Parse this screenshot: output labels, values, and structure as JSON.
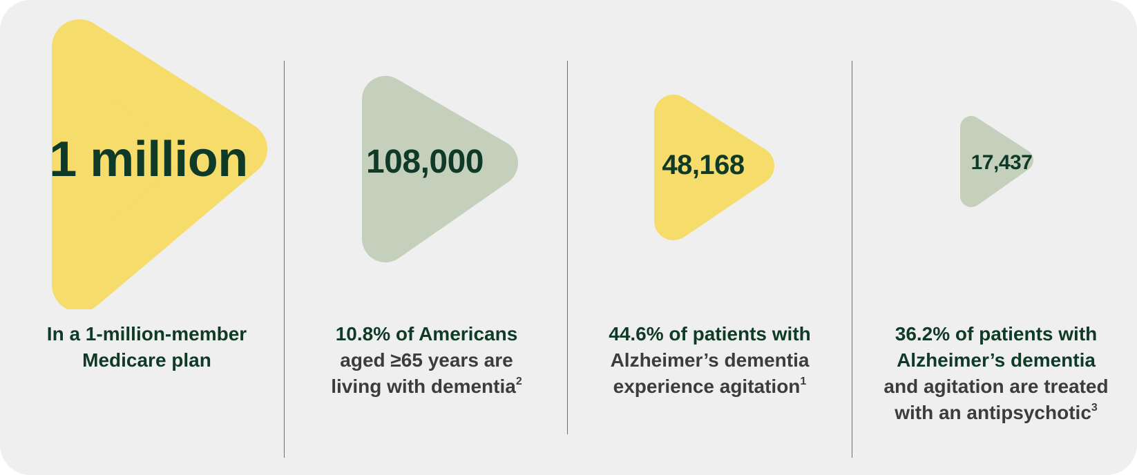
{
  "colors": {
    "background": "#efefef",
    "yellow": "#f5dc6b",
    "sage": "#c4d0bb",
    "dark_green": "#0e3a27",
    "gray_text": "#3c3c3c",
    "divider": "#6f6f6f"
  },
  "stats": [
    {
      "number": "1 million",
      "shape_color": "yellow",
      "caption_line1_highlight": "In a 1-million-member",
      "caption_line1_rest": "",
      "caption_line2_highlight": "Medicare plan",
      "caption_line2_rest": "",
      "caption_line3": "",
      "caption_line4": "",
      "footnote": ""
    },
    {
      "number": "108,000",
      "shape_color": "sage",
      "caption_line1_highlight": "10.8% of Americans",
      "caption_line1_rest": "",
      "caption_line2_highlight": "",
      "caption_line2_rest": "aged ≥65 years are",
      "caption_line3": "living with dementia",
      "caption_line4": "",
      "footnote": "2"
    },
    {
      "number": "48,168",
      "shape_color": "yellow",
      "caption_line1_highlight": "44.6%  of patients",
      "caption_line1_rest": " with",
      "caption_line2_highlight": "",
      "caption_line2_rest": "Alzheimer’s dementia",
      "caption_line3": "experience agitation",
      "caption_line4": "",
      "footnote": "1"
    },
    {
      "number": "17,437",
      "shape_color": "sage",
      "caption_line1_highlight": "36.2% of patients with",
      "caption_line1_rest": "",
      "caption_line2_highlight": "Alzheimer’s dementia",
      "caption_line2_rest": "",
      "caption_line3": "and agitation are treated",
      "caption_line4": "with an antipsychotic",
      "footnote": "3"
    }
  ]
}
